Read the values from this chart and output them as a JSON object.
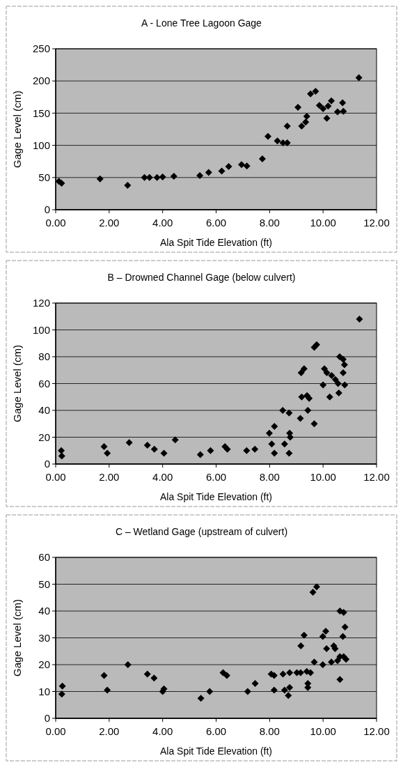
{
  "chart_data": [
    {
      "type": "scatter",
      "title": "A - Lone Tree Lagoon Gage",
      "xlabel": "Ala Spit Tide Elevation (ft)",
      "ylabel": "Gage Level (cm)",
      "marker": "diamond",
      "grid": "y",
      "xlim": [
        0,
        12
      ],
      "xticks": [
        {
          "value": 0,
          "label": "0.00"
        },
        {
          "value": 2,
          "label": "2.00"
        },
        {
          "value": 4,
          "label": "4.00"
        },
        {
          "value": 6,
          "label": "6.00"
        },
        {
          "value": 8,
          "label": "8.00"
        },
        {
          "value": 10,
          "label": "10.00"
        },
        {
          "value": 12,
          "label": "12.00"
        }
      ],
      "ylim": [
        0,
        250
      ],
      "yticks": [
        0,
        50,
        100,
        150,
        200,
        250
      ],
      "series": [
        {
          "color": "#000000",
          "x": [
            0.12,
            0.22,
            1.66,
            2.69,
            3.32,
            3.51,
            3.79,
            4.0,
            4.42,
            5.39,
            5.72,
            6.21,
            6.47,
            6.95,
            7.15,
            7.73,
            7.94,
            8.29,
            8.5,
            8.66,
            8.66,
            9.06,
            9.2,
            9.35,
            9.39,
            9.53,
            9.72,
            9.86,
            10.0,
            10.14,
            10.19,
            10.31,
            10.54,
            10.73,
            10.76,
            11.34
          ],
          "values": [
            44,
            41,
            48,
            38,
            50,
            50,
            50,
            51,
            52,
            53,
            58,
            60,
            67,
            70,
            68,
            79,
            114,
            107,
            104,
            104,
            130,
            159,
            130,
            136,
            145,
            180,
            184,
            162,
            157,
            142,
            161,
            169,
            152,
            166,
            153,
            205
          ]
        }
      ]
    },
    {
      "type": "scatter",
      "title": "B – Drowned Channel Gage (below culvert)",
      "xlabel": "Ala Spit Tide Elevation (ft)",
      "ylabel": "Gage Level (cm)",
      "marker": "diamond",
      "grid": "y",
      "xlim": [
        0,
        12
      ],
      "xticks": [
        {
          "value": 0,
          "label": "0.00"
        },
        {
          "value": 2,
          "label": "2.00"
        },
        {
          "value": 4,
          "label": "4.00"
        },
        {
          "value": 6,
          "label": "6.00"
        },
        {
          "value": 8,
          "label": "8.00"
        },
        {
          "value": 10,
          "label": "10.00"
        },
        {
          "value": 12,
          "label": "12.00"
        }
      ],
      "ylim": [
        0,
        120
      ],
      "yticks": [
        0,
        20,
        40,
        60,
        80,
        100,
        120
      ],
      "series": [
        {
          "color": "#000000",
          "x": [
            0.21,
            0.23,
            1.81,
            1.93,
            2.75,
            3.43,
            3.69,
            4.05,
            4.47,
            5.41,
            5.79,
            6.33,
            6.42,
            7.14,
            7.45,
            7.99,
            8.18,
            8.08,
            8.18,
            8.49,
            8.56,
            8.73,
            8.73,
            8.75,
            8.77,
            9.15,
            9.18,
            9.29,
            9.2,
            9.4,
            9.48,
            9.43,
            9.67,
            9.67,
            9.76,
            10.0,
            10.05,
            10.14,
            10.25,
            10.32,
            10.46,
            10.56,
            10.59,
            10.62,
            10.75,
            10.8,
            10.75,
            10.81,
            11.36
          ],
          "values": [
            10,
            6,
            13,
            8,
            16,
            14,
            11,
            8,
            18,
            7,
            10,
            13,
            11,
            10,
            11,
            23,
            28,
            15,
            8,
            40,
            15,
            38,
            8,
            23,
            20,
            34,
            68,
            71,
            50,
            51,
            49,
            40,
            30,
            87,
            89,
            59,
            71,
            68,
            50,
            66,
            63,
            60,
            53,
            80,
            78,
            74,
            68,
            59,
            108
          ]
        }
      ]
    },
    {
      "type": "scatter",
      "title": "C – Wetland Gage (upstream of culvert)",
      "xlabel": "Ala Spit Tide Elevation (ft)",
      "ylabel": "Gage Level (cm)",
      "marker": "diamond",
      "grid": "y",
      "xlim": [
        0,
        12
      ],
      "xticks": [
        {
          "value": 0,
          "label": "0.00"
        },
        {
          "value": 2,
          "label": "2.00"
        },
        {
          "value": 4,
          "label": "4.00"
        },
        {
          "value": 6,
          "label": "6.00"
        },
        {
          "value": 8,
          "label": "8.00"
        },
        {
          "value": 10,
          "label": "10.00"
        },
        {
          "value": 12,
          "label": "12.00"
        }
      ],
      "ylim": [
        0,
        60
      ],
      "yticks": [
        0,
        10,
        20,
        30,
        40,
        50,
        60
      ],
      "series": [
        {
          "color": "#000000",
          "x": [
            0.25,
            0.23,
            1.81,
            1.93,
            2.7,
            3.43,
            3.68,
            4.0,
            4.05,
            5.43,
            5.76,
            6.26,
            6.4,
            7.18,
            7.46,
            8.06,
            8.17,
            8.17,
            8.5,
            8.56,
            8.7,
            8.75,
            8.75,
            9.02,
            9.16,
            9.17,
            9.29,
            9.39,
            9.43,
            9.43,
            9.53,
            9.62,
            9.76,
            9.67,
            9.99,
            10.1,
            9.99,
            10.13,
            10.31,
            10.4,
            10.45,
            10.54,
            10.63,
            10.63,
            10.63,
            10.77,
            10.74,
            10.82,
            10.77,
            10.86
          ],
          "values": [
            12,
            9,
            16,
            10.5,
            20,
            16.5,
            15,
            10,
            11,
            7.5,
            10,
            17,
            16,
            10,
            13,
            16.5,
            16,
            10.5,
            16.5,
            10.5,
            8.5,
            11.5,
            17,
            17,
            17,
            27,
            31,
            17.5,
            13,
            11.5,
            17,
            47,
            49,
            21,
            30.5,
            32.5,
            20,
            26,
            21,
            27,
            26,
            21.5,
            23,
            14.5,
            40,
            39.5,
            30.5,
            34,
            23,
            22
          ]
        }
      ]
    }
  ]
}
